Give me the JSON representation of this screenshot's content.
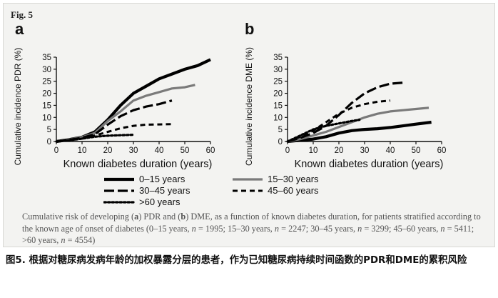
{
  "figure": {
    "label": "Fig. 5",
    "caption_parts": [
      {
        "text": "Cumulative risk of developing (",
        "style": "normal"
      },
      {
        "text": "a",
        "style": "bold"
      },
      {
        "text": ") PDR and (",
        "style": "normal"
      },
      {
        "text": "b",
        "style": "bold"
      },
      {
        "text": ") DME, as a function of known diabetes duration, for patients stratified according to the known age of onset of diabetes (0–15 years, ",
        "style": "normal"
      },
      {
        "text": "n",
        "style": "italic"
      },
      {
        "text": " = 1995; 15–30 years, ",
        "style": "normal"
      },
      {
        "text": "n",
        "style": "italic"
      },
      {
        "text": " = 2247; 30–45 years, ",
        "style": "normal"
      },
      {
        "text": "n",
        "style": "italic"
      },
      {
        "text": " = 3299; 45–60 years, ",
        "style": "normal"
      },
      {
        "text": "n",
        "style": "italic"
      },
      {
        "text": " = 5411; >60 years, ",
        "style": "normal"
      },
      {
        "text": "n",
        "style": "italic"
      },
      {
        "text": " = 4554)",
        "style": "normal"
      }
    ]
  },
  "legend": [
    {
      "label": "0–15 years",
      "style": "solid-thick",
      "color": "#000000"
    },
    {
      "label": "15–30 years",
      "style": "solid-gray",
      "color": "#777777"
    },
    {
      "label": "30–45 years",
      "style": "long-dash",
      "color": "#000000"
    },
    {
      "label": "45–60 years",
      "style": "dash",
      "color": "#000000"
    },
    {
      "label": ">60 years",
      "style": "dotted",
      "color": "#000000"
    }
  ],
  "chinese_caption": "图5. 根据对糖尿病发病年龄的加权暴露分层的患者，作为已知糖尿病持续时间函数的PDR和DME的累积风险",
  "chart_data": [
    {
      "panel": "a",
      "type": "line",
      "xlabel": "Known diabetes duration (years)",
      "ylabel": "Cumulative incidence PDR (%)",
      "xlim": [
        0,
        60
      ],
      "ylim": [
        0,
        35
      ],
      "xticks": [
        0,
        10,
        20,
        30,
        40,
        50,
        60
      ],
      "yticks": [
        0,
        5,
        10,
        15,
        20,
        25,
        30,
        35
      ],
      "series": [
        {
          "name": "0–15 years",
          "x": [
            0,
            5,
            10,
            15,
            20,
            25,
            30,
            35,
            40,
            45,
            50,
            55,
            60
          ],
          "y": [
            0,
            0.8,
            1.8,
            4,
            9,
            15,
            20,
            23,
            26,
            28,
            30,
            31.5,
            34
          ]
        },
        {
          "name": "15–30 years",
          "x": [
            0,
            5,
            10,
            15,
            20,
            25,
            30,
            35,
            40,
            45,
            50,
            54
          ],
          "y": [
            0,
            0.8,
            1.8,
            3.5,
            8.5,
            12.5,
            17,
            19,
            20.5,
            22,
            22.5,
            23.5
          ]
        },
        {
          "name": "30–45 years",
          "x": [
            0,
            5,
            10,
            15,
            20,
            25,
            30,
            35,
            40,
            45
          ],
          "y": [
            0,
            0.7,
            1.5,
            3,
            7,
            10.5,
            13,
            14.5,
            15.5,
            17
          ]
        },
        {
          "name": "45–60 years",
          "x": [
            0,
            5,
            10,
            15,
            20,
            25,
            30,
            35,
            40,
            45
          ],
          "y": [
            0,
            0.5,
            1.2,
            2.5,
            4,
            5.5,
            6.5,
            7,
            7.1,
            7.2
          ]
        },
        {
          "name": ">60 years",
          "x": [
            0,
            5,
            10,
            15,
            20,
            25,
            30
          ],
          "y": [
            0,
            0.5,
            1.2,
            2.0,
            2.4,
            2.6,
            2.8
          ]
        }
      ]
    },
    {
      "panel": "b",
      "type": "line",
      "xlabel": "Known diabetes duration (years)",
      "ylabel": "Cumulative incidence DME (%)",
      "xlim": [
        0,
        60
      ],
      "ylim": [
        0,
        35
      ],
      "xticks": [
        0,
        10,
        20,
        30,
        40,
        50,
        60
      ],
      "yticks": [
        0,
        5,
        10,
        15,
        20,
        25,
        30,
        35
      ],
      "series": [
        {
          "name": "0–15 years",
          "x": [
            0,
            5,
            10,
            15,
            20,
            25,
            30,
            35,
            40,
            45,
            50,
            56
          ],
          "y": [
            0,
            0.5,
            1,
            2,
            3.5,
            4.5,
            5,
            5.3,
            5.8,
            6.5,
            7.2,
            8
          ]
        },
        {
          "name": "15–30 years",
          "x": [
            0,
            5,
            10,
            15,
            20,
            25,
            30,
            35,
            40,
            45,
            50,
            55
          ],
          "y": [
            0,
            1,
            2.5,
            4,
            6,
            8,
            10,
            11.5,
            12.5,
            13,
            13.5,
            14
          ]
        },
        {
          "name": "30–45 years",
          "x": [
            0,
            5,
            10,
            15,
            20,
            25,
            30,
            35,
            40,
            46
          ],
          "y": [
            0,
            1.5,
            3.5,
            6.5,
            11,
            16,
            20,
            22.5,
            24,
            24.5
          ]
        },
        {
          "name": "45–60 years",
          "x": [
            0,
            5,
            10,
            15,
            20,
            25,
            30,
            35,
            40
          ],
          "y": [
            0,
            2,
            4.5,
            8,
            11.5,
            14,
            15.5,
            16.5,
            17
          ]
        },
        {
          "name": ">60 years",
          "x": [
            0,
            5,
            10,
            15,
            20,
            25,
            28
          ],
          "y": [
            0,
            2.5,
            5,
            6.5,
            7.5,
            8.5,
            9
          ]
        }
      ]
    }
  ]
}
